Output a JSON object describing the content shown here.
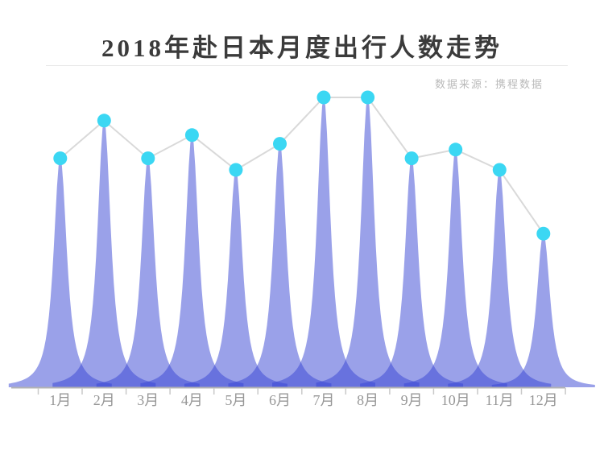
{
  "header": {
    "title": "2018年赴日本月度出行人数走势",
    "source_note": "数据来源：携程数据"
  },
  "chart_data": {
    "type": "area",
    "variant": "spike-peak area chart with circular markers and connector line",
    "title": "2018年赴日本月度出行人数走势",
    "source": "数据来源：携程数据",
    "categories": [
      "1月",
      "2月",
      "3月",
      "4月",
      "5月",
      "6月",
      "7月",
      "8月",
      "9月",
      "10月",
      "11月",
      "12月"
    ],
    "values": [
      79,
      92,
      79,
      87,
      75,
      84,
      100,
      100,
      79,
      82,
      75,
      53
    ],
    "value_note": "relative peak height, tallest months (7月/8月) = 100; chart shows no numeric y-axis",
    "xlabel": "",
    "ylabel": "",
    "ylim": [
      0,
      100
    ],
    "grid": false,
    "legend": false,
    "colors": {
      "spike_fill_rgba": "rgba(53,67,211,0.5)",
      "spike_single_over_white": "#9aa1e9",
      "spike_overlap": "#6b72de",
      "marker": "#3bd7f3",
      "connector_line": "#d9d9d9",
      "axis_line": "#b3b3b3",
      "tick": "#c9c9c9",
      "axis_label": "#979797",
      "title": "#3b3b3b",
      "source": "#bababa",
      "divider": "#e8e8e8"
    }
  }
}
